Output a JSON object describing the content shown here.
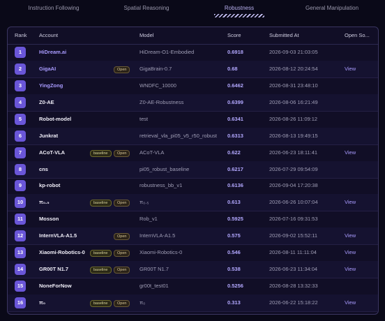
{
  "tabs": {
    "items": [
      "Instruction Following",
      "Spatial Reasoning",
      "Robustness",
      "General Manipulation"
    ],
    "active": 2
  },
  "table": {
    "columns": [
      "Rank",
      "Account",
      "Model",
      "Score",
      "Submitted At",
      "Open So..."
    ],
    "rows": [
      {
        "rank": 1,
        "account": "HiDream.ai",
        "model": "HiDream-O1-Embodied",
        "score": 0.6918,
        "submitted": "2026-09-03 21:03:05"
      },
      {
        "rank": 2,
        "account": "GigaAI",
        "tags": [
          "Open"
        ],
        "model": "GigaBrain-0.7",
        "score": 0.68,
        "submitted": "2026-08-12 20:24:54",
        "open_source": "View"
      },
      {
        "rank": 3,
        "account": "YingZong",
        "model": "WNDFC_10000",
        "score": 0.6462,
        "submitted": "2026-08-31 23:48:10"
      },
      {
        "rank": 4,
        "account": "Z0-AE",
        "model": "Z0-AE-Robustness",
        "score": 0.6399,
        "submitted": "2026-08-06 16:21:49"
      },
      {
        "rank": 5,
        "account": "Robot-model",
        "model": "test",
        "score": 0.6341,
        "submitted": "2026-08-26 11:09:12"
      },
      {
        "rank": 6,
        "account": "Junkrat",
        "model": "retrieval_vla_pi05_v5_r50_robust",
        "score": 0.6313,
        "submitted": "2026-08-13 19:49:15"
      },
      {
        "rank": 7,
        "account": "ACoT-VLA",
        "tags": [
          "baseline",
          "Open"
        ],
        "model": "ACoT-VLA",
        "score": 0.622,
        "submitted": "2026-06-23 18:11:41",
        "open_source": "View"
      },
      {
        "rank": 8,
        "account": "cns",
        "model": "pi05_robust_baseline",
        "score": 0.6217,
        "submitted": "2026-07-29 09:54:09"
      },
      {
        "rank": 9,
        "account": "kp-robot",
        "model": "robustness_bb_v1",
        "score": 0.6136,
        "submitted": "2026-09-04 17:20:38"
      },
      {
        "rank": 10,
        "account": "π₀.₅",
        "tags": [
          "baseline",
          "Open"
        ],
        "model": "π₀.₅",
        "score": 0.613,
        "submitted": "2026-06-26 10:07:04",
        "open_source": "View"
      },
      {
        "rank": 11,
        "account": "Mosson",
        "model": "Rob_v1",
        "score": 0.5925,
        "submitted": "2026-07-16 09:31:53"
      },
      {
        "rank": 12,
        "account": "InternVLA-A1.5",
        "tags": [
          "Open"
        ],
        "model": "InternVLA-A1.5",
        "score": 0.575,
        "submitted": "2026-09-02 15:52:11",
        "open_source": "View"
      },
      {
        "rank": 13,
        "account": "Xiaomi-Robotics-0",
        "tags": [
          "baseline",
          "Open"
        ],
        "model": "Xiaomi-Robotics-0",
        "score": 0.546,
        "submitted": "2026-08-11 11:11:04",
        "open_source": "View"
      },
      {
        "rank": 14,
        "account": "GR00T N1.7",
        "tags": [
          "baseline",
          "Open"
        ],
        "model": "GR00T N1.7",
        "score": 0.538,
        "submitted": "2026-06-23 11:34:04",
        "open_source": "View"
      },
      {
        "rank": 15,
        "account": "NoneForNow",
        "model": "gr00t_test01",
        "score": 0.5256,
        "submitted": "2026-08-28 13:32:33"
      },
      {
        "rank": 16,
        "account": "π₀",
        "tags": [
          "baseline",
          "Open"
        ],
        "model": "π₀",
        "score": 0.313,
        "submitted": "2026-06-22 15:18:22",
        "open_source": "View"
      }
    ]
  }
}
